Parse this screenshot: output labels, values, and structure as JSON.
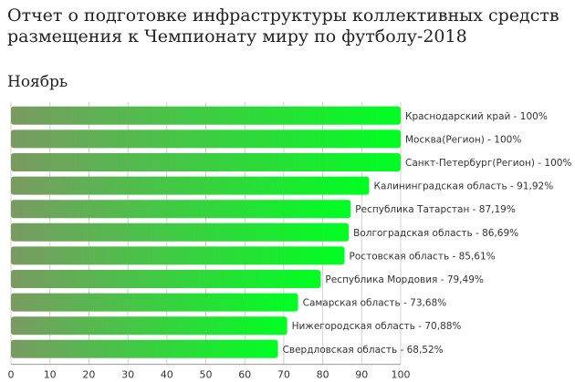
{
  "chart_data": {
    "type": "bar",
    "orientation": "horizontal",
    "title": [
      "Отчет о подготовке инфраструктуры коллективных средств",
      "размещения к Чемпионату миру по футболу-2018"
    ],
    "subtitle": "Ноябрь",
    "categories": [
      "Краснодарский край",
      "Москва(Регион)",
      "Санкт-Петербург(Регион)",
      "Калининградская область",
      "Республика Татарстан",
      "Волгоградская область",
      "Ростовская область",
      "Республика Мордовия",
      "Самарская область",
      "Нижегородская область",
      "Свердловская область"
    ],
    "values": [
      100,
      100,
      100,
      91.92,
      87.19,
      86.69,
      85.61,
      79.49,
      73.68,
      70.88,
      68.52
    ],
    "data_labels": [
      "Краснодарский край - 100%",
      "Москва(Регион) - 100%",
      "Санкт-Петербург(Регион) - 100%",
      "Калининградская область - 91,92%",
      "Республика Татарстан - 87,19%",
      "Волгоградская область - 86,69%",
      "Ростовская область - 85,61%",
      "Республика Мордовия - 79,49%",
      "Самарская область - 73,68%",
      "Нижегородская область - 70,88%",
      "Свердловская область - 68,52%"
    ],
    "xticks": [
      "0",
      "10",
      "20",
      "30",
      "40",
      "50",
      "60",
      "70",
      "80",
      "90",
      "100"
    ],
    "xlim": [
      0,
      100
    ],
    "grid": "vertical",
    "colors": {
      "bar_light": "#00ff22",
      "bar_dark": "#7a9a62",
      "grid": "#d0d0d0"
    }
  }
}
